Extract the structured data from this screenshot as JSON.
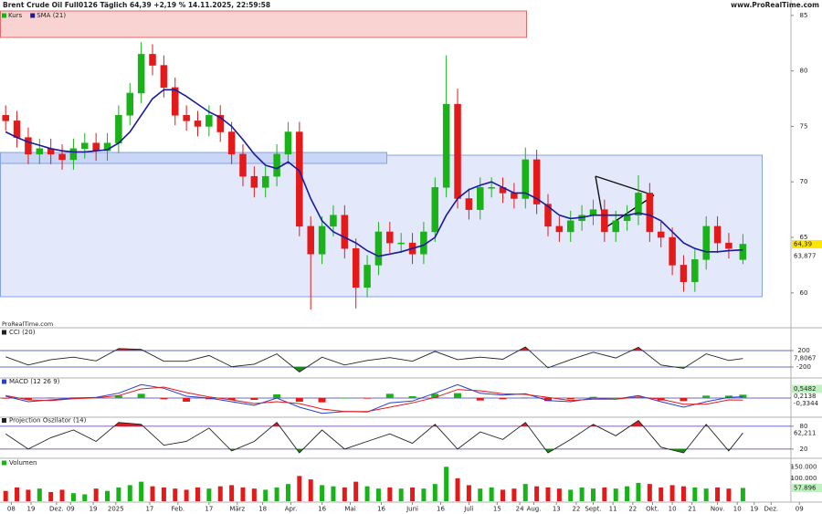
{
  "header": {
    "title": "Brent Crude Oil Full0126 Täglich 64,39 +2,19 % 14.11.2025, 22:59:58",
    "website": "www.ProRealTime.com",
    "watermark": "ProRealTime.com"
  },
  "chart_data": [
    {
      "type": "candlestick",
      "x": [
        0,
        4,
        8,
        12,
        16,
        20,
        24,
        28,
        32,
        36,
        40,
        44,
        48,
        52,
        56,
        60,
        64,
        68,
        72,
        76,
        80,
        84,
        88,
        92,
        96,
        100,
        104,
        108,
        112,
        116,
        120,
        124,
        128,
        132,
        136,
        140,
        144,
        148,
        152,
        156,
        160,
        164,
        168,
        172,
        176,
        180,
        184,
        188,
        192,
        196,
        200,
        204,
        208,
        212,
        216,
        220,
        224,
        228,
        232,
        236,
        240,
        244,
        248,
        252,
        256,
        261
      ],
      "xlim": [
        -2,
        289
      ],
      "xticks": [
        {
          "value": 2,
          "label": "08"
        },
        {
          "value": 9,
          "label": "19"
        },
        {
          "value": 18,
          "label": "Dez."
        },
        {
          "value": 23,
          "label": "09"
        },
        {
          "value": 31,
          "label": "19"
        },
        {
          "value": 39,
          "label": "2025"
        },
        {
          "value": 51,
          "label": "17"
        },
        {
          "value": 61,
          "label": "Feb."
        },
        {
          "value": 72,
          "label": "17"
        },
        {
          "value": 82,
          "label": "März"
        },
        {
          "value": 91,
          "label": "18"
        },
        {
          "value": 101,
          "label": "Apr."
        },
        {
          "value": 112,
          "label": "16"
        },
        {
          "value": 122,
          "label": "Mai"
        },
        {
          "value": 133,
          "label": "16"
        },
        {
          "value": 144,
          "label": "Juni"
        },
        {
          "value": 154,
          "label": "16"
        },
        {
          "value": 164,
          "label": "Juli"
        },
        {
          "value": 174,
          "label": "15"
        },
        {
          "value": 182,
          "label": "24"
        },
        {
          "value": 187,
          "label": "Aug."
        },
        {
          "value": 195,
          "label": "13"
        },
        {
          "value": 202,
          "label": "22"
        },
        {
          "value": 208,
          "label": "Sept."
        },
        {
          "value": 215,
          "label": "11"
        },
        {
          "value": 222,
          "label": "22"
        },
        {
          "value": 229,
          "label": "Okt."
        },
        {
          "value": 236,
          "label": "10"
        },
        {
          "value": 243,
          "label": "21"
        },
        {
          "value": 252,
          "label": "Nov."
        },
        {
          "value": 259,
          "label": "10"
        },
        {
          "value": 265,
          "label": "19"
        },
        {
          "value": 271,
          "label": "Dez."
        },
        {
          "value": 281,
          "label": "09"
        }
      ],
      "ylim": [
        57.6,
        85.4
      ],
      "yticks": [
        60,
        65,
        70,
        75,
        80,
        85
      ],
      "series": [
        {
          "name": "Kurs",
          "color": "#19b219",
          "down_color": "#e31a1a",
          "label_fill": "#ffe600",
          "value_label": "64,39",
          "open": [
            76,
            75.5,
            74,
            72.5,
            73,
            72.5,
            72,
            73,
            73.5,
            72.8,
            73.5,
            76,
            78,
            81.5,
            80.5,
            78.5,
            76,
            75.5,
            75,
            76,
            74.5,
            72.5,
            70.5,
            69.5,
            70.5,
            72.5,
            74.5,
            66,
            63.5,
            66,
            67,
            64,
            60.5,
            62.5,
            65.5,
            64.5,
            64.5,
            63.5,
            65.5,
            69.5,
            77,
            68.5,
            67.5,
            69.5,
            69.5,
            69,
            68.5,
            72,
            68,
            66,
            65.5,
            66.5,
            67,
            67.5,
            65.5,
            66.5,
            67,
            69,
            65.5,
            65,
            62.5,
            61,
            63,
            66,
            64.5,
            63
          ],
          "high": [
            76.9,
            76.4,
            74.9,
            73.9,
            73.9,
            73.4,
            73.9,
            74.4,
            74.4,
            74.4,
            76.9,
            78.9,
            82.6,
            82.4,
            81.4,
            79.4,
            76.9,
            76.4,
            76.9,
            76.9,
            75.4,
            73.4,
            71.4,
            71.4,
            73.4,
            75.4,
            75.4,
            66.9,
            66.9,
            67.9,
            67.9,
            64.9,
            63.4,
            66.4,
            66.4,
            65.4,
            65.4,
            66.4,
            70.4,
            81.4,
            78.4,
            69.4,
            70.4,
            70.4,
            70.4,
            69.9,
            73.1,
            72.9,
            68.9,
            66.9,
            67.4,
            67.9,
            68.4,
            68.4,
            67.4,
            67.9,
            70.6,
            69.9,
            66.4,
            65.9,
            63.4,
            63.9,
            66.9,
            66.9,
            65.4,
            65.3
          ],
          "low": [
            74.6,
            73.1,
            71.6,
            71.6,
            71.6,
            71.1,
            71.1,
            72.1,
            71.9,
            71.9,
            72.6,
            75.1,
            77.1,
            79.6,
            77.6,
            75.1,
            74.6,
            74.1,
            74.1,
            73.6,
            71.6,
            69.6,
            68.6,
            68.6,
            69.6,
            71.6,
            65.1,
            58.5,
            62.6,
            65.1,
            63.1,
            58.6,
            59.6,
            61.6,
            63.6,
            63.6,
            62.6,
            62.6,
            64.6,
            68.6,
            67.6,
            66.6,
            66.6,
            68.6,
            68.1,
            67.6,
            67.6,
            67.1,
            65.1,
            64.6,
            64.6,
            65.6,
            66.1,
            64.6,
            64.6,
            65.6,
            66.1,
            64.6,
            64.1,
            61.6,
            60.1,
            60.1,
            62.1,
            63.6,
            63.1,
            62.6
          ],
          "close": [
            75.5,
            74,
            72.5,
            73,
            72.5,
            72,
            73,
            73.5,
            72.8,
            73.5,
            76,
            78,
            81.5,
            80.5,
            78.5,
            76,
            75.5,
            75,
            76,
            74.5,
            72.5,
            70.5,
            69.5,
            70.5,
            72.5,
            74.5,
            66,
            63.5,
            66,
            67,
            64,
            60.5,
            62.5,
            65.5,
            64.5,
            64.5,
            63.5,
            65.5,
            69.5,
            77,
            68.5,
            67.5,
            69.5,
            69.5,
            69,
            68.5,
            72,
            68,
            66,
            65.5,
            66.5,
            67,
            67.5,
            65.5,
            66.5,
            67,
            69,
            65.5,
            65,
            62.5,
            61,
            63,
            66,
            64.5,
            64,
            64.39
          ]
        },
        {
          "name": "SMA (21)",
          "color": "#1a1aa0",
          "value_label": "63,877",
          "values": [
            74.5,
            74,
            73.6,
            73.3,
            73,
            72.8,
            72.7,
            72.7,
            72.8,
            72.9,
            73.5,
            74.5,
            76,
            77.5,
            78.3,
            78.3,
            77.7,
            77,
            76.3,
            75.8,
            75,
            73.8,
            72.5,
            71.5,
            71.2,
            71.8,
            71,
            68.5,
            66.5,
            65.5,
            65,
            64.5,
            63.8,
            63.3,
            63.5,
            63.7,
            64,
            64.3,
            65,
            67,
            68.5,
            69.3,
            69.7,
            70,
            69.5,
            69,
            69,
            68.5,
            67.8,
            67,
            66.7,
            66.8,
            67,
            67,
            67,
            67,
            67.2,
            67,
            66.5,
            65.5,
            64.5,
            64,
            63.7,
            63.7,
            63.8,
            63.877
          ]
        }
      ]
    },
    {
      "type": "oscillator",
      "title": "CCI (20)",
      "color": "#222222",
      "over_color": "#e31a1a",
      "under_color": "#1a8a1a",
      "value_label": "7,8067",
      "x": [
        0,
        8,
        16,
        24,
        32,
        40,
        48,
        56,
        64,
        72,
        80,
        88,
        96,
        104,
        112,
        120,
        128,
        136,
        144,
        152,
        160,
        168,
        176,
        184,
        192,
        200,
        208,
        216,
        224,
        232,
        240,
        248,
        256,
        261
      ],
      "values": [
        50,
        -150,
        -20,
        40,
        -50,
        250,
        230,
        -60,
        -60,
        80,
        -190,
        -130,
        120,
        -320,
        40,
        -150,
        -40,
        30,
        -60,
        180,
        -20,
        40,
        -10,
        290,
        -220,
        -20,
        160,
        20,
        280,
        -150,
        -230,
        120,
        -40,
        7.8067
      ],
      "ylim": [
        -422,
        689
      ],
      "yticks": [
        200,
        -200
      ]
    },
    {
      "type": "macd",
      "title": "MACD (12 26 9)",
      "x": [
        0,
        8,
        16,
        24,
        32,
        40,
        48,
        56,
        64,
        72,
        80,
        88,
        96,
        104,
        112,
        120,
        128,
        136,
        144,
        152,
        160,
        168,
        176,
        184,
        192,
        200,
        208,
        216,
        224,
        232,
        240,
        248,
        256,
        261
      ],
      "ylim": [
        -3,
        3
      ],
      "series": [
        {
          "style": "bar",
          "color": "#19b219",
          "down_color": "#e31a1a",
          "value_label": "0,5482",
          "values": [
            -0.1,
            -0.3,
            0.1,
            0.1,
            0.05,
            0.4,
            0.7,
            -0.2,
            -0.6,
            -0.2,
            -0.3,
            -0.3,
            0.6,
            -0.6,
            -0.7,
            0,
            -0.1,
            0.7,
            0.3,
            0.7,
            0.8,
            -0.4,
            -0.2,
            0.1,
            -0.5,
            -0.2,
            0.2,
            0,
            0.2,
            -0.4,
            -0.5,
            0.4,
            0.4,
            0.5482
          ]
        },
        {
          "style": "line",
          "color": "#2a3fd0",
          "value_label": "0,2138",
          "values": [
            0.3,
            -0.6,
            -0.3,
            0,
            0.1,
            0.8,
            2.2,
            1.6,
            0.3,
            0,
            -0.6,
            -1.2,
            0,
            -1.5,
            -2.5,
            -2.2,
            -2.3,
            -0.8,
            -0.5,
            0.8,
            2.2,
            0.8,
            0.5,
            0.7,
            -0.4,
            -0.6,
            0,
            -0.2,
            0.4,
            -0.6,
            -1.5,
            -0.6,
            0.1,
            0.2138
          ]
        },
        {
          "style": "line",
          "color": "#e31a1a",
          "value_label": "-0,3344",
          "values": [
            0.4,
            -0.3,
            -0.4,
            -0.1,
            0.05,
            0.4,
            1.5,
            1.8,
            0.9,
            0.2,
            -0.3,
            -0.9,
            -0.6,
            -0.9,
            -1.8,
            -2.2,
            -2.2,
            -1.5,
            -0.8,
            0.1,
            1.4,
            1.2,
            0.7,
            0.6,
            0.1,
            -0.4,
            -0.2,
            -0.2,
            0.2,
            -0.2,
            -1.0,
            -1.0,
            -0.3,
            -0.3344
          ]
        }
      ]
    },
    {
      "type": "oscillator",
      "title": "Projection Oszilator (14)",
      "color": "#222222",
      "over_color": "#e31a1a",
      "under_color": "#1a8a1a",
      "value_label": "62,211",
      "x": [
        0,
        8,
        16,
        24,
        32,
        40,
        48,
        56,
        64,
        72,
        80,
        88,
        96,
        104,
        112,
        120,
        128,
        136,
        144,
        152,
        160,
        168,
        176,
        184,
        192,
        200,
        208,
        216,
        224,
        232,
        240,
        248,
        256,
        261
      ],
      "values": [
        60,
        20,
        50,
        70,
        40,
        90,
        85,
        30,
        40,
        75,
        15,
        40,
        90,
        10,
        70,
        20,
        40,
        60,
        35,
        85,
        20,
        65,
        45,
        90,
        10,
        45,
        85,
        55,
        95,
        25,
        10,
        85,
        15,
        62.211
      ],
      "ylim": [
        0,
        100
      ],
      "yticks": [
        80,
        20
      ]
    },
    {
      "type": "bar",
      "title": "Volumen",
      "color": "#19b219",
      "value_label": "57.896",
      "x": [
        0,
        4,
        8,
        12,
        16,
        20,
        24,
        28,
        32,
        36,
        40,
        44,
        48,
        52,
        56,
        60,
        64,
        68,
        72,
        76,
        80,
        84,
        88,
        92,
        96,
        100,
        104,
        108,
        112,
        116,
        120,
        124,
        128,
        132,
        136,
        140,
        144,
        148,
        152,
        156,
        160,
        164,
        168,
        172,
        176,
        180,
        184,
        188,
        192,
        196,
        200,
        204,
        208,
        212,
        216,
        220,
        224,
        228,
        232,
        236,
        240,
        244,
        248,
        252,
        256,
        261
      ],
      "values": [
        45000,
        60000,
        50000,
        55000,
        40000,
        50000,
        35000,
        30000,
        55000,
        45000,
        60000,
        70000,
        85000,
        65000,
        60000,
        55000,
        50000,
        60000,
        55000,
        65000,
        70000,
        60000,
        55000,
        50000,
        60000,
        75000,
        110000,
        95000,
        70000,
        65000,
        60000,
        85000,
        65000,
        55000,
        60000,
        55000,
        60000,
        55000,
        75000,
        150000,
        100000,
        70000,
        55000,
        60000,
        50000,
        55000,
        75000,
        65000,
        60000,
        55000,
        50000,
        60000,
        55000,
        60000,
        55000,
        65000,
        80000,
        75000,
        60000,
        70000,
        65000,
        60000,
        55000,
        60000,
        55000,
        57896
      ],
      "ylim": [
        0,
        175000
      ],
      "yticks": [
        {
          "value": 150000,
          "label": "150.000"
        },
        {
          "value": 100000,
          "label": "100.000"
        }
      ]
    }
  ]
}
